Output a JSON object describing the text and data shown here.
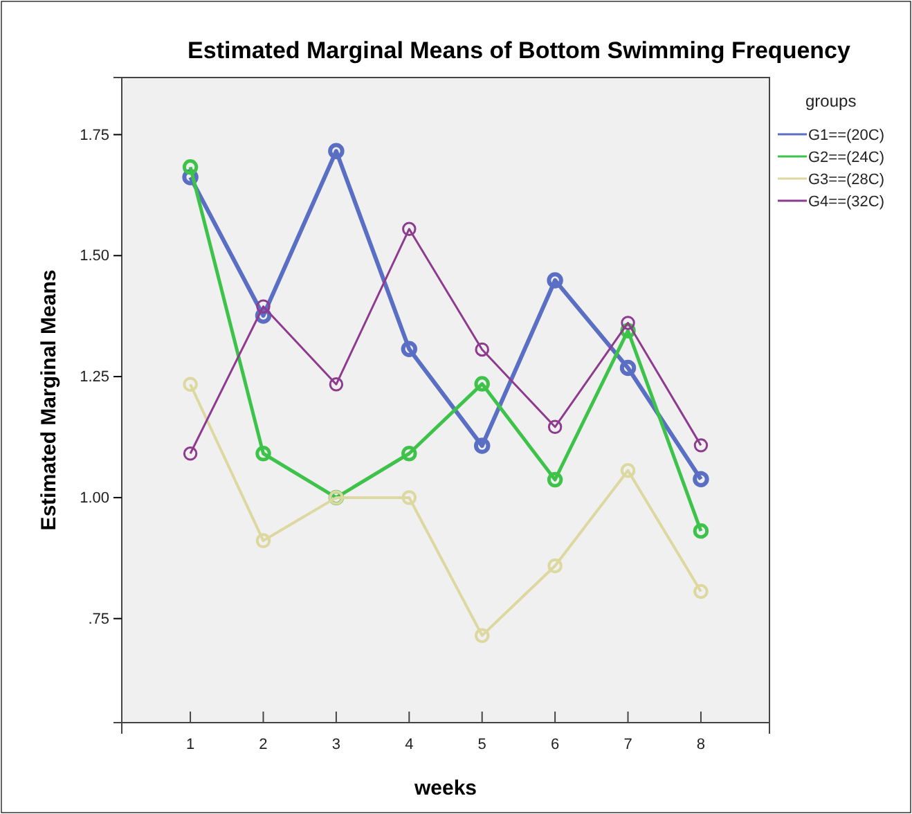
{
  "chart_data": {
    "type": "line",
    "title": "Estimated Marginal Means of Bottom Swimming Frequency",
    "xlabel": "weeks",
    "ylabel": "Estimated Marginal Means",
    "legend_title": "groups",
    "legend": "top right",
    "marker": "circle",
    "grid": false,
    "categories": [
      "1",
      "2",
      "3",
      "4",
      "5",
      "6",
      "7",
      "8"
    ],
    "ylim": [
      0.535,
      1.868
    ],
    "yticks": [
      {
        "value": 0.75,
        "label": ".75"
      },
      {
        "value": 1,
        "label": "1.00"
      },
      {
        "value": 1.25,
        "label": "1.25"
      },
      {
        "value": 1.5,
        "label": "1.50"
      },
      {
        "value": 1.75,
        "label": "1.75"
      }
    ],
    "series": [
      {
        "name": "G1==(20C)",
        "color": "#5a6fc4",
        "values": [
          1.662,
          1.376,
          1.716,
          1.307,
          1.107,
          1.449,
          1.268,
          1.038
        ]
      },
      {
        "name": "G2==(24C)",
        "color": "#3dc24a",
        "values": [
          1.683,
          1.091,
          1.0,
          1.091,
          1.235,
          1.037,
          1.345,
          0.931
        ]
      },
      {
        "name": "G3==(28C)",
        "color": "#dcd8a0",
        "values": [
          1.234,
          0.911,
          1.0,
          1.0,
          0.715,
          0.859,
          1.056,
          0.806
        ]
      },
      {
        "name": "G4==(32C)",
        "color": "#8e3a8e",
        "values": [
          1.091,
          1.395,
          1.234,
          1.555,
          1.306,
          1.146,
          1.361,
          1.108
        ]
      }
    ]
  }
}
